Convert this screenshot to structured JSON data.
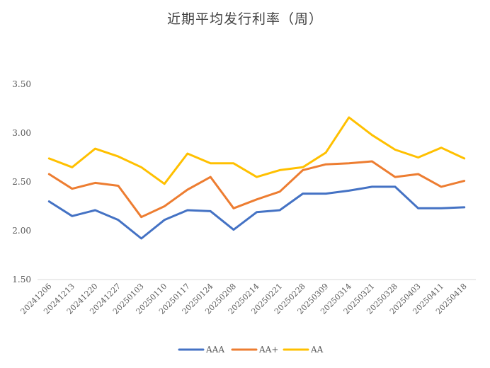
{
  "chart_data": {
    "type": "line",
    "title": "近期平均发行利率（周）",
    "xlabel": "",
    "ylabel": "",
    "ylim": [
      1.5,
      3.5
    ],
    "yticks": [
      "3.50",
      "3.00",
      "2.50",
      "2.00",
      "1.50"
    ],
    "ytick_values": [
      3.5,
      3.0,
      2.5,
      2.0,
      1.5
    ],
    "grid": false,
    "legend_position": "bottom",
    "categories": [
      "20241206",
      "20241213",
      "20241220",
      "20241227",
      "20250103",
      "20250110",
      "20250117",
      "20250124",
      "20250208",
      "20250214",
      "20250221",
      "20250228",
      "20250309",
      "20250314",
      "20250321",
      "20250328",
      "20250403",
      "20250411",
      "20250418"
    ],
    "series": [
      {
        "name": "AAA",
        "color": "#4472C4",
        "values": [
          2.3,
          2.15,
          2.21,
          2.11,
          1.92,
          2.11,
          2.21,
          2.2,
          2.01,
          2.19,
          2.21,
          2.38,
          2.38,
          2.41,
          2.45,
          2.45,
          2.23,
          2.23,
          2.24
        ]
      },
      {
        "name": "AA+",
        "color": "#ED7D31",
        "values": [
          2.58,
          2.43,
          2.49,
          2.46,
          2.14,
          2.25,
          2.42,
          2.55,
          2.23,
          2.32,
          2.4,
          2.62,
          2.68,
          2.69,
          2.71,
          2.55,
          2.58,
          2.45,
          2.51
        ]
      },
      {
        "name": "AA",
        "color": "#FFC000",
        "values": [
          2.74,
          2.65,
          2.84,
          2.76,
          2.65,
          2.48,
          2.79,
          2.69,
          2.69,
          2.55,
          2.62,
          2.65,
          2.8,
          3.16,
          2.98,
          2.83,
          2.75,
          2.85,
          2.74
        ]
      }
    ]
  }
}
